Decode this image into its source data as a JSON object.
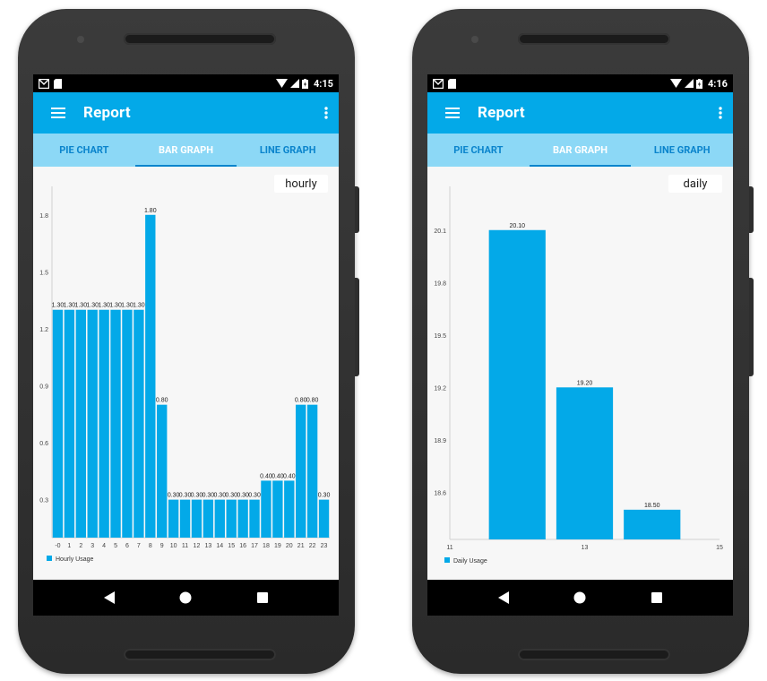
{
  "left": {
    "status": {
      "time": "4:15"
    },
    "appbar": {
      "title": "Report",
      "menu_icon": "hamburger-icon",
      "more_icon": "more-vert-icon"
    },
    "tabs": [
      "PIE CHART",
      "BAR GRAPH",
      "LINE GRAPH"
    ],
    "active_tab": 1,
    "period": "hourly",
    "accent": "#03a9e8",
    "chart_data": {
      "type": "bar",
      "categories": [
        "0",
        "1",
        "2",
        "3",
        "4",
        "5",
        "6",
        "7",
        "8",
        "9",
        "10",
        "11",
        "12",
        "13",
        "14",
        "15",
        "16",
        "17",
        "18",
        "19",
        "20",
        "21",
        "22",
        "23"
      ],
      "series": [
        {
          "name": "Hourly Usage",
          "values": [
            1.3,
            1.3,
            1.3,
            1.3,
            1.3,
            1.3,
            1.3,
            1.3,
            1.8,
            0.8,
            0.3,
            0.3,
            0.3,
            0.3,
            0.3,
            0.3,
            0.3,
            0.3,
            0.4,
            0.4,
            0.4,
            0.8,
            0.8,
            0.3
          ]
        }
      ],
      "value_labels": [
        "1.30",
        "1.30",
        "1.30",
        "1.30",
        "1.30",
        "1.30",
        "1.30",
        "1.30",
        "1.80",
        "0.80",
        "0.30",
        "0.30",
        "0.30",
        "0.30",
        "0.30",
        "0.30",
        "0.30",
        "0.30",
        "0.40",
        "0.40",
        "0.40",
        "0.80",
        "0.80",
        "0.30"
      ],
      "x_tick_labels": [
        "-0",
        "1",
        "2",
        "3",
        "4",
        "5",
        "6",
        "7",
        "8",
        "9",
        "10",
        "11",
        "12",
        "13",
        "14",
        "15",
        "16",
        "17",
        "18",
        "19",
        "20",
        "21",
        "22",
        "23"
      ],
      "y_ticks": [
        0.3,
        0.6,
        0.9,
        1.2,
        1.5,
        1.8
      ],
      "y_tick_labels": [
        "0.3",
        "0.6",
        "0.9",
        "1.2",
        "1.5",
        "1.8"
      ],
      "ylim": [
        0.1,
        1.95
      ],
      "xlim": [
        -0.5,
        23.5
      ],
      "legend": "bottom-left",
      "grid": false
    }
  },
  "right": {
    "status": {
      "time": "4:16"
    },
    "appbar": {
      "title": "Report",
      "menu_icon": "hamburger-icon",
      "more_icon": "more-vert-icon"
    },
    "tabs": [
      "PIE CHART",
      "BAR GRAPH",
      "LINE GRAPH"
    ],
    "active_tab": 1,
    "period": "daily",
    "accent": "#03a9e8",
    "chart_data": {
      "type": "bar",
      "x": [
        12,
        13,
        14
      ],
      "series": [
        {
          "name": "Daily Usage",
          "values": [
            20.1,
            19.2,
            18.5
          ]
        }
      ],
      "value_labels": [
        "20.10",
        "19.20",
        "18.50"
      ],
      "x_ticks": [
        11,
        13,
        15
      ],
      "x_tick_labels": [
        "11",
        "13",
        "15"
      ],
      "y_ticks": [
        18.6,
        18.9,
        19.2,
        19.5,
        19.8,
        20.1
      ],
      "y_tick_labels": [
        "18.6",
        "18.9",
        "19.2",
        "19.5",
        "19.8",
        "20.1"
      ],
      "ylim": [
        18.33,
        20.35
      ],
      "xlim": [
        11,
        15
      ],
      "legend": "bottom-left",
      "grid": false
    }
  }
}
